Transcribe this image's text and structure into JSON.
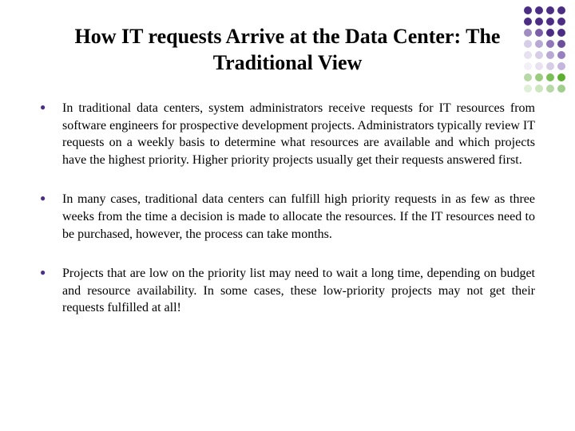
{
  "title": "How IT requests Arrive at the Data Center: The Traditional View",
  "title_fontsize": 26,
  "body_fontsize": 16,
  "bullet_color": "#4b2e83",
  "bullets": [
    "In traditional data centers, system administrators receive requests for IT resources from software engineers for prospective development projects. Administrators typically review IT requests on a weekly basis to determine what resources are available and which projects have the highest priority. Higher priority projects usually get their requests answered first.",
    "In many cases, traditional data centers can fulfill high priority requests in as few as three weeks from the time a decision is made to allocate the resources. If the IT resources need to be purchased, however, the process can take months.",
    "Projects that are low on the priority list may need to wait a long time, depending on budget and resource availability. In some cases, these low-priority projects may not get their requests fulfilled at all!"
  ],
  "decoration": {
    "colors": [
      "#4b2e83",
      "#4b2e83",
      "#4b2e83",
      "#4b2e83",
      "#4b2e83",
      "#4b2e83",
      "#4b2e83",
      "#4b2e83",
      "#a08cc0",
      "#7a5fa8",
      "#4b2e83",
      "#4b2e83",
      "#d6cde6",
      "#b8a8d4",
      "#8f77b8",
      "#6b4f9a",
      "#e8e2f0",
      "#d6cde6",
      "#b8a8d4",
      "#9680bd",
      "#f3f0f8",
      "#e8e2f0",
      "#d6cde6",
      "#c3b5dc",
      "#b8d8a8",
      "#9acb7f",
      "#7bbd57",
      "#5caf30",
      "#e0efd8",
      "#cde6be",
      "#b8d8a8",
      "#a0ce8c"
    ]
  }
}
